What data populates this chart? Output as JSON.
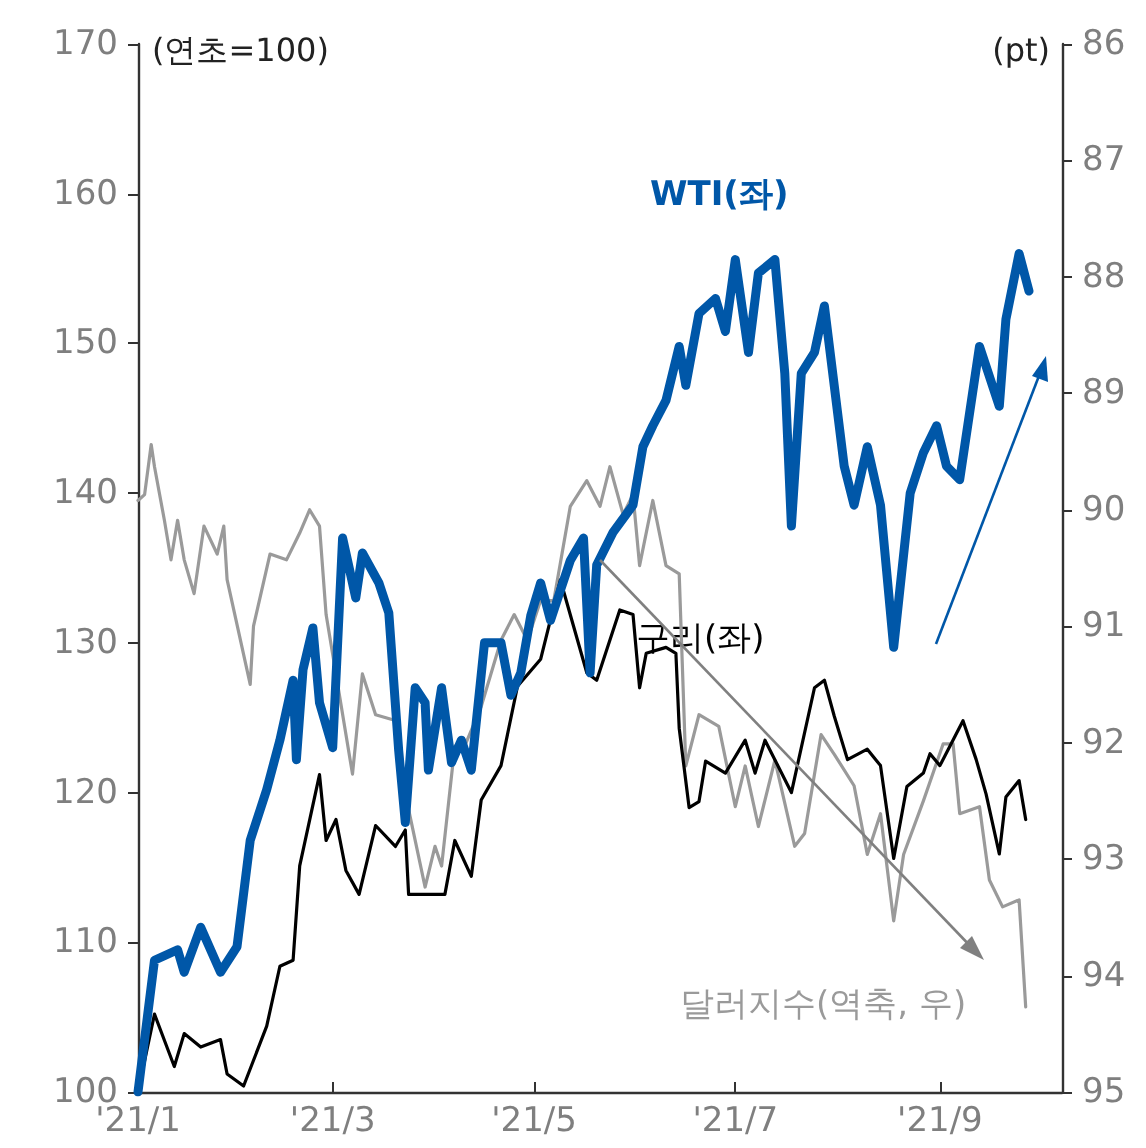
{
  "chart_data": {
    "type": "line",
    "ylabel": "(연초=100)",
    "y2label": "(pt)",
    "marker": "none",
    "xlim": [
      "2021-01-01",
      "2021-10-08"
    ],
    "xticks": [
      {
        "value": "2021-01-01",
        "label": "'21/1"
      },
      {
        "value": "2021-03-01",
        "label": "'21/3"
      },
      {
        "value": "2021-05-01",
        "label": "'21/5"
      },
      {
        "value": "2021-07-01",
        "label": "'21/7"
      },
      {
        "value": "2021-09-01",
        "label": "'21/9"
      }
    ],
    "ylim": [
      100,
      170
    ],
    "yticks": [
      100,
      110,
      120,
      130,
      140,
      150,
      160,
      170
    ],
    "y2lim": [
      95,
      86
    ],
    "y2ticks": [
      86,
      87,
      88,
      89,
      90,
      91,
      92,
      93,
      94,
      95
    ],
    "series": [
      {
        "name": "WTI(좌)",
        "color": "#0057a8",
        "x": [
          "2021-01-01",
          "2021-01-06",
          "2021-01-13",
          "2021-01-15",
          "2021-01-20",
          "2021-01-26",
          "2021-01-31",
          "2021-02-04",
          "2021-02-09",
          "2021-02-13",
          "2021-02-17",
          "2021-02-18",
          "2021-02-20",
          "2021-02-23",
          "2021-02-25",
          "2021-03-01",
          "2021-03-04",
          "2021-03-08",
          "2021-03-10",
          "2021-03-15",
          "2021-03-18",
          "2021-03-21",
          "2021-03-23",
          "2021-03-26",
          "2021-03-29",
          "2021-03-30",
          "2021-04-03",
          "2021-04-06",
          "2021-04-09",
          "2021-04-12",
          "2021-04-16",
          "2021-04-21",
          "2021-04-24",
          "2021-04-27",
          "2021-04-30",
          "2021-05-03",
          "2021-05-06",
          "2021-05-09",
          "2021-05-12",
          "2021-05-16",
          "2021-05-18",
          "2021-05-20",
          "2021-05-25",
          "2021-05-31",
          "2021-06-03",
          "2021-06-06",
          "2021-06-10",
          "2021-06-14",
          "2021-06-16",
          "2021-06-20",
          "2021-06-25",
          "2021-06-28",
          "2021-07-01",
          "2021-07-05",
          "2021-07-08",
          "2021-07-13",
          "2021-07-16",
          "2021-07-18",
          "2021-07-21",
          "2021-07-25",
          "2021-07-28",
          "2021-08-03",
          "2021-08-06",
          "2021-08-10",
          "2021-08-14",
          "2021-08-18",
          "2021-08-23",
          "2021-08-27",
          "2021-08-31",
          "2021-09-03",
          "2021-09-07",
          "2021-09-13",
          "2021-09-19",
          "2021-09-21",
          "2021-09-25",
          "2021-09-28"
        ],
        "values": [
          100,
          108.8,
          109.5,
          108,
          111,
          108,
          109.7,
          116.8,
          120.2,
          123.5,
          127.5,
          122.2,
          128.2,
          131,
          126,
          123,
          137,
          133,
          136,
          134,
          132,
          122.8,
          118,
          127,
          126,
          121.5,
          127,
          122,
          123.5,
          121.5,
          130,
          130,
          126.5,
          128,
          131.8,
          134,
          131.5,
          133.5,
          135.5,
          137,
          128,
          135.2,
          137.4,
          139.2,
          143.1,
          144.5,
          146.2,
          149.8,
          147.2,
          152,
          153,
          150.8,
          155.6,
          149.4,
          154.7,
          155.6,
          148,
          137.8,
          148,
          149.4,
          152.5,
          141.8,
          139.2,
          143.1,
          139.2,
          129.7,
          140,
          142.7,
          144.5,
          141.8,
          140.9,
          149.8,
          145.8,
          151.6,
          156,
          153.5
        ]
      },
      {
        "name": "구리(좌)",
        "color": "#000000",
        "x": [
          "2021-01-01",
          "2021-01-06",
          "2021-01-12",
          "2021-01-15",
          "2021-01-20",
          "2021-01-26",
          "2021-01-28",
          "2021-02-02",
          "2021-02-09",
          "2021-02-13",
          "2021-02-17",
          "2021-02-19",
          "2021-02-25",
          "2021-02-27",
          "2021-03-02",
          "2021-03-05",
          "2021-03-09",
          "2021-03-14",
          "2021-03-20",
          "2021-03-23",
          "2021-03-24",
          "2021-03-29",
          "2021-04-04",
          "2021-04-07",
          "2021-04-12",
          "2021-04-15",
          "2021-04-21",
          "2021-04-26",
          "2021-05-03",
          "2021-05-09",
          "2021-05-17",
          "2021-05-20",
          "2021-05-27",
          "2021-05-31",
          "2021-06-02",
          "2021-06-04",
          "2021-06-10",
          "2021-06-13",
          "2021-06-14",
          "2021-06-17",
          "2021-06-20",
          "2021-06-22",
          "2021-06-28",
          "2021-07-04",
          "2021-07-07",
          "2021-07-10",
          "2021-07-18",
          "2021-07-25",
          "2021-07-28",
          "2021-07-31",
          "2021-08-04",
          "2021-08-10",
          "2021-08-14",
          "2021-08-18",
          "2021-08-22",
          "2021-08-27",
          "2021-08-29",
          "2021-09-01",
          "2021-09-08",
          "2021-09-12",
          "2021-09-15",
          "2021-09-19",
          "2021-09-21",
          "2021-09-25",
          "2021-09-27"
        ],
        "values": [
          100,
          105.2,
          101.7,
          103.9,
          103,
          103.5,
          101.2,
          100.4,
          104.4,
          108.4,
          108.8,
          115.1,
          121.2,
          116.8,
          118.2,
          114.8,
          113.2,
          117.8,
          116.4,
          117.5,
          113.2,
          113.2,
          113.2,
          116.8,
          114.4,
          119.5,
          121.8,
          127.1,
          128.9,
          134.2,
          128,
          127.5,
          132.2,
          131.9,
          127,
          129.3,
          129.7,
          129.3,
          124.3,
          119,
          119.4,
          122.1,
          121.3,
          123.5,
          121.3,
          123.5,
          120,
          127,
          127.5,
          125.1,
          122.2,
          122.9,
          121.8,
          115.6,
          120.4,
          121.3,
          122.6,
          121.8,
          124.8,
          122.2,
          119.9,
          115.9,
          119.7,
          120.8,
          118.2
        ]
      },
      {
        "name": "달러지수(역축, 우)",
        "color": "#9a9a9a",
        "axis": "y2",
        "x": [
          "2021-01-01",
          "2021-01-03",
          "2021-01-05",
          "2021-01-06",
          "2021-01-09",
          "2021-01-11",
          "2021-01-13",
          "2021-01-15",
          "2021-01-18",
          "2021-01-21",
          "2021-01-25",
          "2021-01-27",
          "2021-01-28",
          "2021-02-04",
          "2021-02-05",
          "2021-02-10",
          "2021-02-15",
          "2021-02-19",
          "2021-02-22",
          "2021-02-25",
          "2021-02-27",
          "2021-03-07",
          "2021-03-10",
          "2021-03-14",
          "2021-03-20",
          "2021-03-23",
          "2021-03-29",
          "2021-04-01",
          "2021-04-03",
          "2021-04-07",
          "2021-04-10",
          "2021-04-15",
          "2021-04-21",
          "2021-04-25",
          "2021-04-29",
          "2021-05-03",
          "2021-05-07",
          "2021-05-12",
          "2021-05-17",
          "2021-05-21",
          "2021-05-24",
          "2021-05-28",
          "2021-05-31",
          "2021-06-02",
          "2021-06-06",
          "2021-06-10",
          "2021-06-14",
          "2021-06-16",
          "2021-06-20",
          "2021-06-26",
          "2021-07-01",
          "2021-07-04",
          "2021-07-08",
          "2021-07-13",
          "2021-07-19",
          "2021-07-22",
          "2021-07-27",
          "2021-07-31",
          "2021-08-06",
          "2021-08-10",
          "2021-08-14",
          "2021-08-18",
          "2021-08-21",
          "2021-08-27",
          "2021-09-02",
          "2021-09-05",
          "2021-09-07",
          "2021-09-13",
          "2021-09-16",
          "2021-09-20",
          "2021-09-25",
          "2021-09-27"
        ],
        "values": [
          89.92,
          89.87,
          89.44,
          89.63,
          90.09,
          90.43,
          90.09,
          90.43,
          90.72,
          90.14,
          90.38,
          90.14,
          90.6,
          91.5,
          91.0,
          90.38,
          90.43,
          90.2,
          90.0,
          90.14,
          90.9,
          92.27,
          91.41,
          91.76,
          91.81,
          92.44,
          93.24,
          92.89,
          93.06,
          92.03,
          92.03,
          91.69,
          91.12,
          90.9,
          91.12,
          90.78,
          90.78,
          89.97,
          89.75,
          89.97,
          89.63,
          90.04,
          89.87,
          90.48,
          89.92,
          90.48,
          90.55,
          92.2,
          91.76,
          91.86,
          92.55,
          92.2,
          92.72,
          92.15,
          92.89,
          92.78,
          91.93,
          92.1,
          92.37,
          92.96,
          92.61,
          93.53,
          92.96,
          92.5,
          92.01,
          92.01,
          92.61,
          92.55,
          93.18,
          93.41,
          93.35,
          94.27
        ]
      }
    ]
  }
}
